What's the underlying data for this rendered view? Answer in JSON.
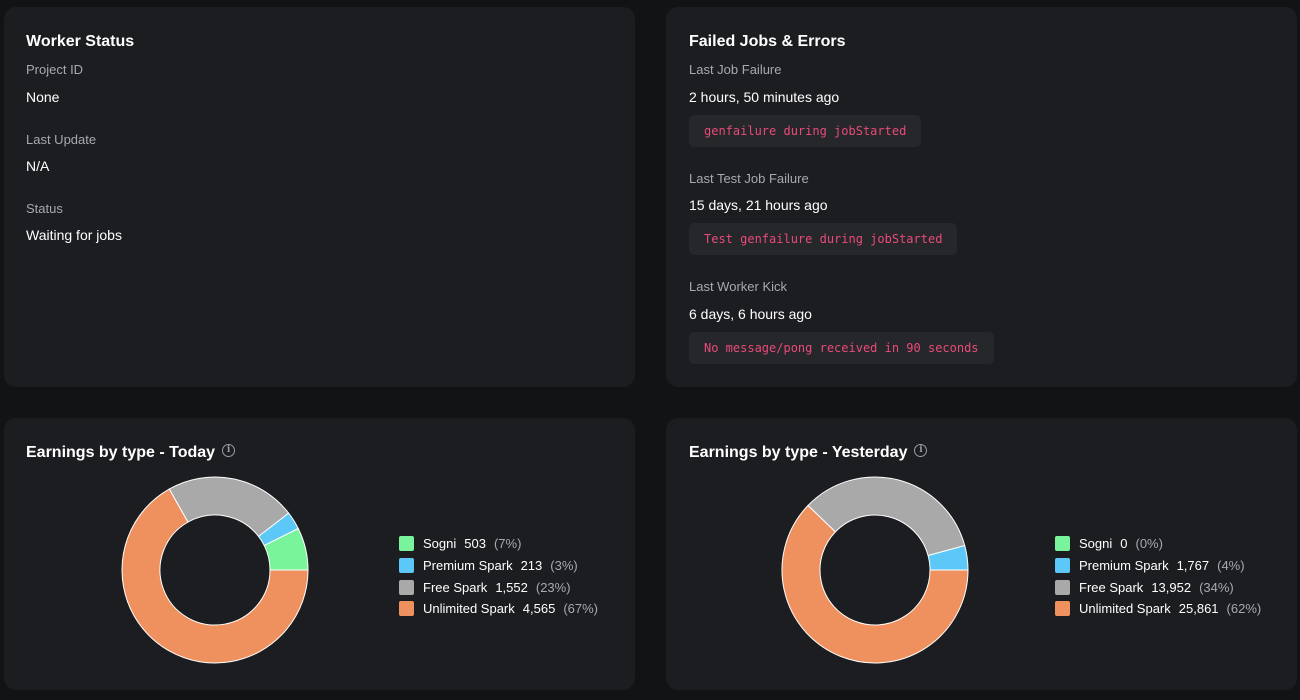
{
  "worker_status": {
    "title": "Worker Status",
    "project_id_label": "Project ID",
    "project_id_value": "None",
    "last_update_label": "Last Update",
    "last_update_value": "N/A",
    "status_label": "Status",
    "status_value": "Waiting for jobs"
  },
  "failed_jobs": {
    "title": "Failed Jobs & Errors",
    "items": [
      {
        "label": "Last Job Failure",
        "time": "2 hours, 50 minutes ago",
        "message": "genfailure during jobStarted"
      },
      {
        "label": "Last Test Job Failure",
        "time": "15 days, 21 hours ago",
        "message": "Test genfailure during jobStarted"
      },
      {
        "label": "Last Worker Kick",
        "time": "6 days, 6 hours ago",
        "message": "No message/pong received in 90 seconds"
      }
    ]
  },
  "earnings_today": {
    "title": "Earnings by type - Today",
    "info_icon": "info-icon"
  },
  "earnings_yesterday": {
    "title": "Earnings by type - Yesterday",
    "info_icon": "info-icon"
  },
  "colors": {
    "sogni": "#79f49a",
    "premium_spark": "#5cc8f8",
    "free_spark": "#a9a9a9",
    "unlimited_spark": "#ef915f"
  },
  "chart_data": [
    {
      "type": "pie",
      "donut": true,
      "title": "Earnings by type - Today",
      "series": [
        {
          "name": "Sogni",
          "value": 503,
          "value_label": "503",
          "percent_label": "(7%)",
          "color": "#79f49a"
        },
        {
          "name": "Premium Spark",
          "value": 213,
          "value_label": "213",
          "percent_label": "(3%)",
          "color": "#5cc8f8"
        },
        {
          "name": "Free Spark",
          "value": 1552,
          "value_label": "1,552",
          "percent_label": "(23%)",
          "color": "#a9a9a9"
        },
        {
          "name": "Unlimited Spark",
          "value": 4565,
          "value_label": "4,565",
          "percent_label": "(67%)",
          "color": "#ef915f"
        }
      ],
      "legend_position": "right"
    },
    {
      "type": "pie",
      "donut": true,
      "title": "Earnings by type - Yesterday",
      "series": [
        {
          "name": "Sogni",
          "value": 0,
          "value_label": "0",
          "percent_label": "(0%)",
          "color": "#79f49a"
        },
        {
          "name": "Premium Spark",
          "value": 1767,
          "value_label": "1,767",
          "percent_label": "(4%)",
          "color": "#5cc8f8"
        },
        {
          "name": "Free Spark",
          "value": 13952,
          "value_label": "13,952",
          "percent_label": "(34%)",
          "color": "#a9a9a9"
        },
        {
          "name": "Unlimited Spark",
          "value": 25861,
          "value_label": "25,861",
          "percent_label": "(62%)",
          "color": "#ef915f"
        }
      ],
      "legend_position": "right"
    }
  ]
}
